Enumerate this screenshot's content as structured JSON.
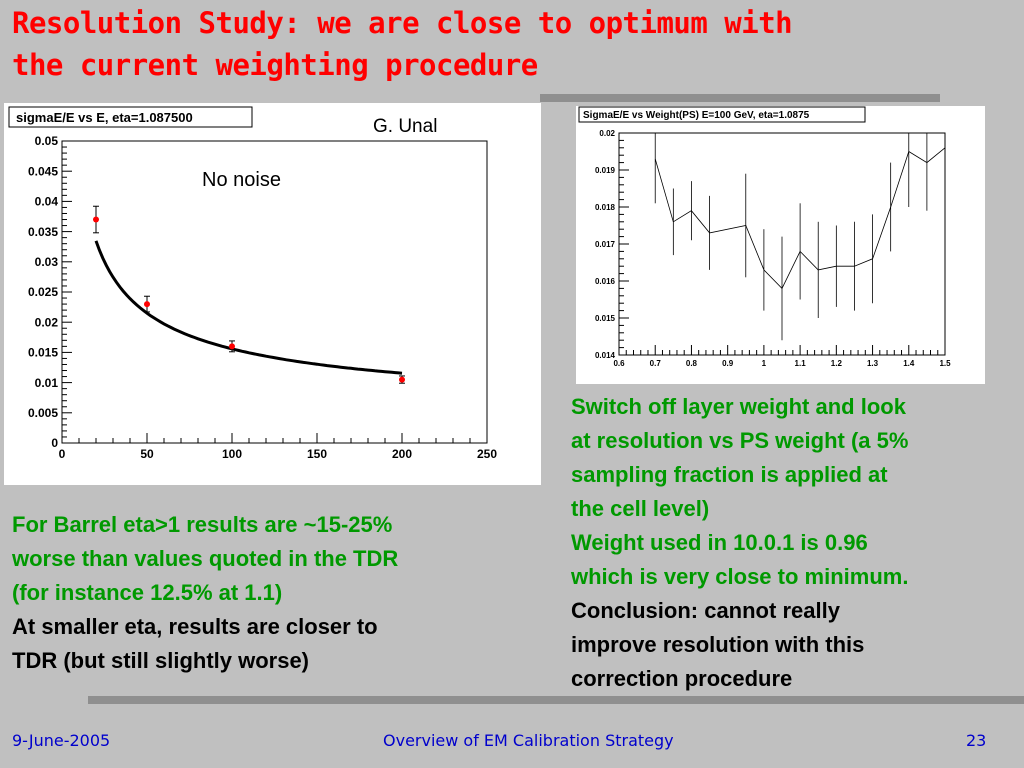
{
  "slide": {
    "title_line1": "Resolution Study: we are close to optimum with",
    "title_line2": "the current weighting procedure",
    "credit": "G. Unal",
    "no_noise": "No noise"
  },
  "left_text": {
    "green_lines": [
      "For Barrel eta>1 results are ~15-25%",
      "worse than values quoted in the TDR",
      "(for instance 12.5% at 1.1)"
    ],
    "black_lines": [
      "At smaller eta, results are closer to",
      "TDR (but still slightly worse)"
    ]
  },
  "right_text": {
    "green_lines": [
      "Switch off layer weight and look",
      "at resolution vs PS weight (a 5%",
      "sampling fraction is applied at",
      "the cell level)",
      "Weight used in 10.0.1 is 0.96",
      "which is very close to minimum."
    ],
    "black_lines": [
      "Conclusion: cannot really",
      "improve resolution with this",
      "correction procedure"
    ]
  },
  "footer": {
    "date": "9-June-2005",
    "center": "Overview of EM Calibration Strategy",
    "page": "23"
  },
  "colors": {
    "title": "#ff0000",
    "green_text": "#009900",
    "footer_text": "#0000cc",
    "background": "#c0c0c0",
    "rule": "#8f8f8f",
    "marker": "#ff0000"
  },
  "chart_data": [
    {
      "type": "scatter",
      "title": "sigmaE/E vs E, eta=1.087500",
      "xlabel": "",
      "ylabel": "",
      "xlim": [
        0,
        250
      ],
      "ylim": [
        0,
        0.05
      ],
      "xticks": [
        "0",
        "50",
        "100",
        "150",
        "200",
        "250"
      ],
      "yticks": [
        "0",
        "0.005",
        "0.01",
        "0.015",
        "0.02",
        "0.025",
        "0.03",
        "0.035",
        "0.04",
        "0.045",
        "0.05"
      ],
      "points": [
        {
          "x": 20,
          "y": 0.037,
          "err": 0.0022
        },
        {
          "x": 50,
          "y": 0.023,
          "err": 0.0013
        },
        {
          "x": 100,
          "y": 0.016,
          "err": 0.0009
        },
        {
          "x": 200,
          "y": 0.0105,
          "err": 0.0006
        }
      ],
      "fit": {
        "a": 0.148,
        "b": 0.0049
      },
      "grid": false
    },
    {
      "type": "line",
      "title": "SigmaE/E vs Weight(PS) E=100 GeV, eta=1.0875",
      "xlabel": "",
      "ylabel": "",
      "xlim": [
        0.6,
        1.5
      ],
      "ylim": [
        0.014,
        0.02
      ],
      "xticks": [
        "0.6",
        "0.7",
        "0.8",
        "0.9",
        "1",
        "1.1",
        "1.2",
        "1.3",
        "1.4",
        "1.5"
      ],
      "yticks": [
        "0.014",
        "0.015",
        "0.016",
        "0.017",
        "0.018",
        "0.019",
        "0.02"
      ],
      "points": [
        {
          "x": 0.7,
          "y": 0.0193,
          "err": 0.0012
        },
        {
          "x": 0.75,
          "y": 0.0176,
          "err": 0.0009
        },
        {
          "x": 0.8,
          "y": 0.0179,
          "err": 0.0008
        },
        {
          "x": 0.85,
          "y": 0.0173,
          "err": 0.001
        },
        {
          "x": 0.95,
          "y": 0.0175,
          "err": 0.0014
        },
        {
          "x": 1.0,
          "y": 0.0163,
          "err": 0.0011
        },
        {
          "x": 1.05,
          "y": 0.0158,
          "err": 0.0014
        },
        {
          "x": 1.1,
          "y": 0.0168,
          "err": 0.0013
        },
        {
          "x": 1.15,
          "y": 0.0163,
          "err": 0.0013
        },
        {
          "x": 1.2,
          "y": 0.0164,
          "err": 0.0011
        },
        {
          "x": 1.25,
          "y": 0.0164,
          "err": 0.0012
        },
        {
          "x": 1.3,
          "y": 0.0166,
          "err": 0.0012
        },
        {
          "x": 1.35,
          "y": 0.018,
          "err": 0.0012
        },
        {
          "x": 1.4,
          "y": 0.0195,
          "err": 0.0015
        },
        {
          "x": 1.45,
          "y": 0.0192,
          "err": 0.0013
        },
        {
          "x": 1.5,
          "y": 0.0196,
          "err": 0.0012
        }
      ],
      "grid": false
    }
  ]
}
